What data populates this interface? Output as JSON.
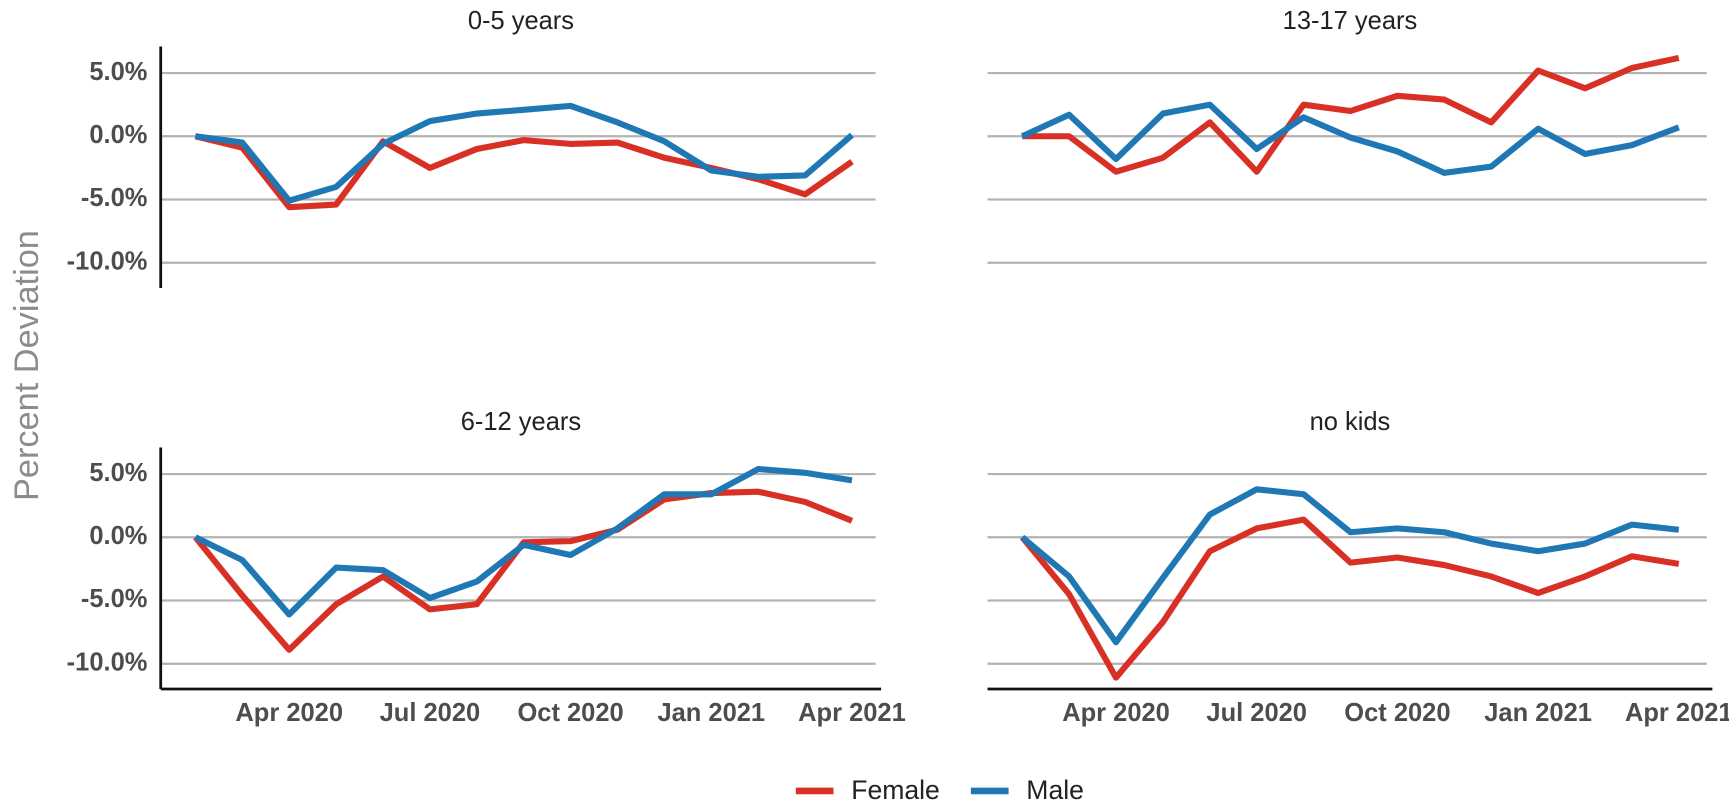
{
  "chart_data": [
    {
      "type": "line",
      "title": "0-5 years",
      "ylabel": "Percent Deviation",
      "x": [
        "2020-02",
        "2020-03",
        "2020-04",
        "2020-05",
        "2020-06",
        "2020-07",
        "2020-08",
        "2020-09",
        "2020-10",
        "2020-11",
        "2020-12",
        "2021-01",
        "2021-02",
        "2021-03",
        "2021-04"
      ],
      "xlim": [
        "2020-01",
        "2021-05"
      ],
      "ylim": [
        -12,
        7.1
      ],
      "yticks": [
        {
          "value": -10,
          "label": "-10.0%"
        },
        {
          "value": -5,
          "label": "-5.0%"
        },
        {
          "value": 0,
          "label": "0.0%"
        },
        {
          "value": 5,
          "label": "5.0%"
        }
      ],
      "grid": true,
      "series": [
        {
          "name": "Female",
          "color": "#d93025",
          "values": [
            0,
            -0.9,
            -5.6,
            -5.4,
            -0.4,
            -2.5,
            -1.0,
            -0.3,
            -0.6,
            -0.5,
            -1.7,
            -2.5,
            -3.4,
            -4.6,
            -2.0
          ]
        },
        {
          "name": "Male",
          "color": "#1f78b4",
          "values": [
            0,
            -0.5,
            -5.1,
            -4.0,
            -0.6,
            1.2,
            1.8,
            2.1,
            2.4,
            1.1,
            -0.4,
            -2.7,
            -3.2,
            -3.1,
            0.1
          ]
        }
      ]
    },
    {
      "type": "line",
      "title": "13-17 years",
      "x": [
        "2020-02",
        "2020-03",
        "2020-04",
        "2020-05",
        "2020-06",
        "2020-07",
        "2020-08",
        "2020-09",
        "2020-10",
        "2020-11",
        "2020-12",
        "2021-01",
        "2021-02",
        "2021-03",
        "2021-04"
      ],
      "xlim": [
        "2020-01",
        "2021-05"
      ],
      "ylim": [
        -12,
        7.1
      ],
      "yticks": [
        -10,
        -5,
        0,
        5
      ],
      "grid": true,
      "series": [
        {
          "name": "Female",
          "color": "#d93025",
          "values": [
            0,
            0,
            -2.8,
            -1.7,
            1.1,
            -2.8,
            2.5,
            2.0,
            3.2,
            2.9,
            1.1,
            5.2,
            3.8,
            5.4,
            6.2
          ]
        },
        {
          "name": "Male",
          "color": "#1f78b4",
          "values": [
            0,
            1.7,
            -1.8,
            1.8,
            2.5,
            -1.0,
            1.5,
            -0.1,
            -1.2,
            -2.9,
            -2.4,
            0.6,
            -1.4,
            -0.7,
            0.7
          ]
        }
      ]
    },
    {
      "type": "line",
      "title": "6-12 years",
      "x": [
        "2020-02",
        "2020-03",
        "2020-04",
        "2020-05",
        "2020-06",
        "2020-07",
        "2020-08",
        "2020-09",
        "2020-10",
        "2020-11",
        "2020-12",
        "2021-01",
        "2021-02",
        "2021-03",
        "2021-04"
      ],
      "xlim": [
        "2020-01",
        "2021-05"
      ],
      "ylim": [
        -12,
        7.1
      ],
      "yticks": [
        {
          "value": -10,
          "label": "-10.0%"
        },
        {
          "value": -5,
          "label": "-5.0%"
        },
        {
          "value": 0,
          "label": "0.0%"
        },
        {
          "value": 5,
          "label": "5.0%"
        }
      ],
      "xticks": [
        {
          "value": "2020-04",
          "label": "Apr 2020"
        },
        {
          "value": "2020-07",
          "label": "Jul 2020"
        },
        {
          "value": "2020-10",
          "label": "Oct 2020"
        },
        {
          "value": "2021-01",
          "label": "Jan 2021"
        },
        {
          "value": "2021-04",
          "label": "Apr 2021"
        }
      ],
      "grid": true,
      "series": [
        {
          "name": "Female",
          "color": "#d93025",
          "values": [
            0,
            -4.6,
            -8.9,
            -5.3,
            -3.1,
            -5.7,
            -5.3,
            -0.4,
            -0.3,
            0.6,
            3.0,
            3.5,
            3.6,
            2.8,
            1.3
          ]
        },
        {
          "name": "Male",
          "color": "#1f78b4",
          "values": [
            0,
            -1.8,
            -6.1,
            -2.4,
            -2.6,
            -4.8,
            -3.5,
            -0.6,
            -1.4,
            0.7,
            3.4,
            3.4,
            5.4,
            5.1,
            4.5
          ]
        }
      ]
    },
    {
      "type": "line",
      "title": "no kids",
      "x": [
        "2020-02",
        "2020-03",
        "2020-04",
        "2020-05",
        "2020-06",
        "2020-07",
        "2020-08",
        "2020-09",
        "2020-10",
        "2020-11",
        "2020-12",
        "2021-01",
        "2021-02",
        "2021-03",
        "2021-04"
      ],
      "xlim": [
        "2020-01",
        "2021-05"
      ],
      "ylim": [
        -12,
        7.1
      ],
      "yticks": [
        -10,
        -5,
        0,
        5
      ],
      "xticks": [
        {
          "value": "2020-04",
          "label": "Apr 2020"
        },
        {
          "value": "2020-07",
          "label": "Jul 2020"
        },
        {
          "value": "2020-10",
          "label": "Oct 2020"
        },
        {
          "value": "2021-01",
          "label": "Jan 2021"
        },
        {
          "value": "2021-04",
          "label": "Apr 2021"
        }
      ],
      "grid": true,
      "series": [
        {
          "name": "Female",
          "color": "#d93025",
          "values": [
            0,
            -4.5,
            -11.1,
            -6.7,
            -1.1,
            0.7,
            1.4,
            -2.0,
            -1.6,
            -2.2,
            -3.1,
            -4.4,
            -3.1,
            -1.5,
            -2.1
          ]
        },
        {
          "name": "Male",
          "color": "#1f78b4",
          "values": [
            0,
            -3.1,
            -8.3,
            -3.2,
            1.8,
            3.8,
            3.4,
            0.4,
            0.7,
            0.4,
            -0.5,
            -1.1,
            -0.5,
            1.0,
            0.6
          ]
        }
      ]
    }
  ]
}
